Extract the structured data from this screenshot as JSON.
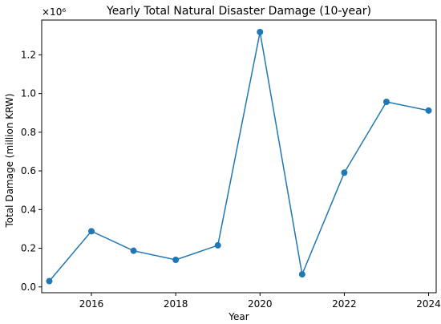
{
  "chart_data": {
    "type": "line",
    "title": "Yearly Total Natural Disaster Damage (10-year)",
    "xlabel": "Year",
    "ylabel": "Total Damage (million KRW)",
    "y_multiplier_label": "×10⁶",
    "xlim": [
      2014.82,
      2024.18
    ],
    "ylim": [
      -30000,
      1380000
    ],
    "x_ticks": [
      2016,
      2018,
      2020,
      2022,
      2024
    ],
    "y_ticks": [
      0.0,
      0.2,
      0.4,
      0.6,
      0.8,
      1.0,
      1.2
    ],
    "y_tick_labels": [
      "0.0",
      "0.2",
      "0.4",
      "0.6",
      "0.8",
      "1.0",
      "1.2"
    ],
    "grid": false,
    "series": [
      {
        "color": "#1f77b4",
        "x": [
          2015,
          2016,
          2017,
          2018,
          2019,
          2020,
          2021,
          2022,
          2023,
          2024
        ],
        "y": [
          30000,
          288000,
          187000,
          140000,
          215000,
          1318000,
          65000,
          591000,
          957000,
          912000
        ]
      }
    ]
  }
}
